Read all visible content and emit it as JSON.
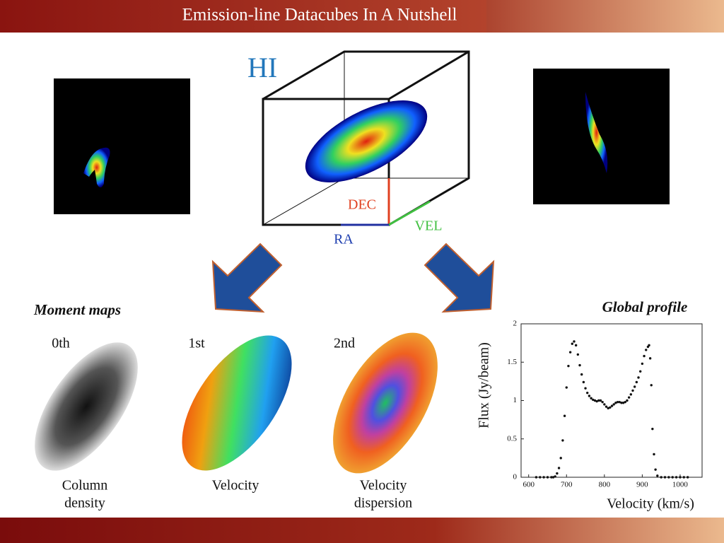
{
  "header": {
    "title": "Emission-line Datacubes In A Nutshell"
  },
  "cube": {
    "label": "HI",
    "axes": {
      "dec": "DEC",
      "vel": "VEL",
      "ra": "RA"
    }
  },
  "moment_maps": {
    "title": "Moment maps",
    "panels": [
      {
        "order": "0th",
        "caption": [
          "Column",
          "density"
        ]
      },
      {
        "order": "1st",
        "caption": [
          "Velocity"
        ]
      },
      {
        "order": "2nd",
        "caption": [
          "Velocity",
          "dispersion"
        ]
      }
    ]
  },
  "chart_data": {
    "type": "scatter",
    "title": "Global profile",
    "x_label": "Velocity (km/s)",
    "y_label": "Flux (Jy/beam)",
    "color": "#111111",
    "x": [
      620,
      630,
      640,
      650,
      660,
      665,
      670,
      675,
      680,
      685,
      690,
      695,
      700,
      705,
      710,
      715,
      720,
      725,
      730,
      735,
      740,
      745,
      750,
      755,
      760,
      765,
      770,
      775,
      780,
      785,
      790,
      795,
      800,
      805,
      810,
      815,
      820,
      825,
      830,
      835,
      840,
      845,
      850,
      855,
      860,
      865,
      870,
      875,
      880,
      885,
      890,
      895,
      900,
      905,
      910,
      915,
      918,
      921,
      924,
      927,
      931,
      935,
      940,
      950,
      960,
      970,
      980,
      990,
      1000,
      1010,
      1020
    ],
    "values": [
      0,
      0,
      0,
      0,
      0,
      0,
      0.01,
      0.05,
      0.12,
      0.25,
      0.48,
      0.8,
      1.17,
      1.45,
      1.63,
      1.74,
      1.77,
      1.72,
      1.6,
      1.46,
      1.34,
      1.24,
      1.16,
      1.1,
      1.06,
      1.03,
      1.01,
      1,
      0.99,
      1,
      1,
      0.98,
      0.95,
      0.92,
      0.9,
      0.91,
      0.93,
      0.95,
      0.97,
      0.98,
      0.98,
      0.97,
      0.97,
      0.98,
      1,
      1.04,
      1.08,
      1.13,
      1.18,
      1.24,
      1.3,
      1.38,
      1.48,
      1.58,
      1.66,
      1.7,
      1.72,
      1.55,
      1.2,
      0.63,
      0.3,
      0.1,
      0.02,
      0,
      0,
      0,
      0,
      0,
      0,
      0,
      0
    ],
    "xlim": [
      580,
      1058
    ],
    "ylim": [
      0,
      2
    ],
    "xticks": [
      600,
      700,
      800,
      900,
      1000
    ],
    "yticks": [
      0,
      0.5,
      1,
      1.5,
      2
    ]
  }
}
